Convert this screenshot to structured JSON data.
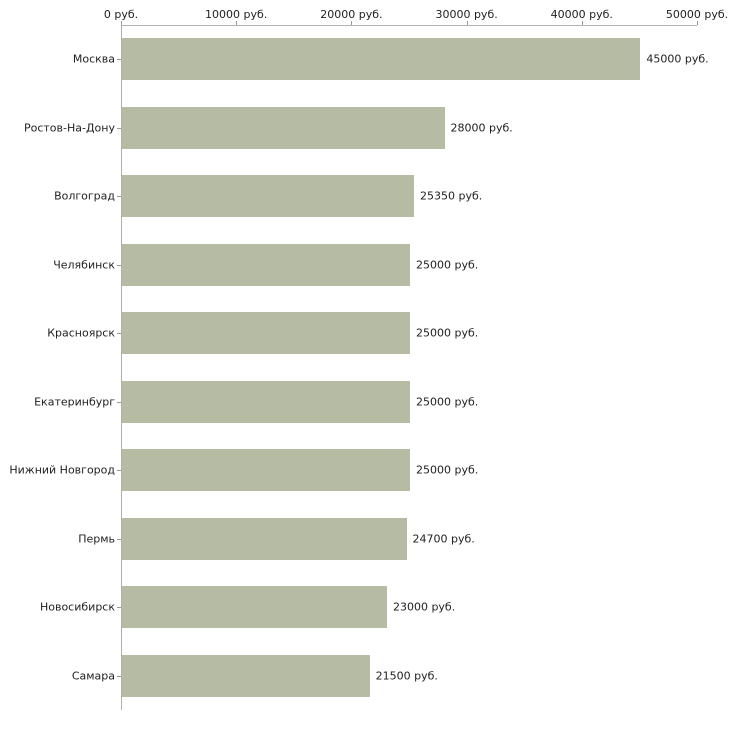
{
  "chart_data": {
    "type": "bar",
    "orientation": "horizontal",
    "title": "",
    "xlabel": "",
    "ylabel": "",
    "categories": [
      "Москва",
      "Ростов-На-Дону",
      "Волгоград",
      "Челябинск",
      "Красноярск",
      "Екатеринбург",
      "Нижний Новгород",
      "Пермь",
      "Новосибирск",
      "Самара"
    ],
    "values": [
      45000,
      28000,
      25350,
      25000,
      25000,
      25000,
      25000,
      24700,
      23000,
      21500
    ],
    "value_labels": [
      "45000 руб.",
      "28000 руб.",
      "25350 руб.",
      "25000 руб.",
      "25000 руб.",
      "25000 руб.",
      "25000 руб.",
      "24700 руб.",
      "23000 руб.",
      "21500 руб."
    ],
    "x_ticks": [
      0,
      10000,
      20000,
      30000,
      40000,
      50000
    ],
    "x_tick_labels": [
      "0 руб.",
      "10000 руб.",
      "20000 руб.",
      "30000 руб.",
      "40000 руб.",
      "50000 руб."
    ],
    "xlim": [
      0,
      50000
    ],
    "grid": false,
    "legend": "none",
    "bar_color": "#b5bca3",
    "axis_color": "#b0b0b0",
    "text_color": "#222222"
  }
}
